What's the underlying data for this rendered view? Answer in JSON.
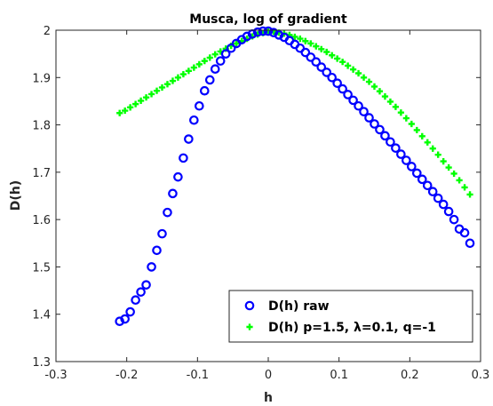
{
  "chart_data": {
    "type": "scatter",
    "title": "Musca, log of gradient",
    "xlabel": "h",
    "ylabel": "D(h)",
    "xlim": [
      -0.3,
      0.3
    ],
    "ylim": [
      1.3,
      2.0
    ],
    "xticks": [
      "-0.3",
      "-0.2",
      "-0.1",
      "0",
      "0.1",
      "0.2",
      "0.3"
    ],
    "yticks": [
      "1.3",
      "1.4",
      "1.5",
      "1.6",
      "1.7",
      "1.8",
      "1.9",
      "2"
    ],
    "grid": false,
    "box": true,
    "legend": {
      "position": "bottom-right"
    },
    "series": [
      {
        "name": "D(h) raw",
        "marker": "circle",
        "color": "#0000ff",
        "x": [
          -0.21,
          -0.2025,
          -0.195,
          -0.1875,
          -0.18,
          -0.1725,
          -0.165,
          -0.1575,
          -0.15,
          -0.1425,
          -0.135,
          -0.1275,
          -0.12,
          -0.1125,
          -0.105,
          -0.0975,
          -0.09,
          -0.0825,
          -0.075,
          -0.0675,
          -0.06,
          -0.0525,
          -0.045,
          -0.0375,
          -0.03,
          -0.0225,
          -0.015,
          -0.0075,
          0.0,
          0.0075,
          0.015,
          0.0225,
          0.03,
          0.0375,
          0.045,
          0.0525,
          0.06,
          0.0675,
          0.075,
          0.0825,
          0.09,
          0.0975,
          0.105,
          0.1125,
          0.12,
          0.1275,
          0.135,
          0.1425,
          0.15,
          0.1575,
          0.165,
          0.1725,
          0.18,
          0.1875,
          0.195,
          0.2025,
          0.21,
          0.2175,
          0.225,
          0.2325,
          0.24,
          0.2475,
          0.255,
          0.2625,
          0.27,
          0.2775,
          0.285
        ],
        "y": [
          1.385,
          1.39,
          1.405,
          1.43,
          1.447,
          1.462,
          1.5,
          1.535,
          1.57,
          1.615,
          1.655,
          1.69,
          1.73,
          1.77,
          1.81,
          1.84,
          1.872,
          1.895,
          1.918,
          1.935,
          1.95,
          1.962,
          1.972,
          1.98,
          1.987,
          1.992,
          1.996,
          1.998,
          1.998,
          1.995,
          1.99,
          1.985,
          1.978,
          1.97,
          1.962,
          1.953,
          1.943,
          1.933,
          1.922,
          1.911,
          1.9,
          1.888,
          1.876,
          1.864,
          1.852,
          1.84,
          1.828,
          1.815,
          1.802,
          1.79,
          1.777,
          1.764,
          1.751,
          1.738,
          1.725,
          1.712,
          1.698,
          1.685,
          1.672,
          1.659,
          1.645,
          1.632,
          1.617,
          1.6,
          1.58,
          1.572,
          1.55
        ]
      },
      {
        "name": "D(h) p=1.5, λ=0.1, q=-1",
        "marker": "plus",
        "color": "#00ff00",
        "x": [
          -0.21,
          -0.2025,
          -0.195,
          -0.1875,
          -0.18,
          -0.1725,
          -0.165,
          -0.1575,
          -0.15,
          -0.1425,
          -0.135,
          -0.1275,
          -0.12,
          -0.1125,
          -0.105,
          -0.0975,
          -0.09,
          -0.0825,
          -0.075,
          -0.0675,
          -0.06,
          -0.0525,
          -0.045,
          -0.0375,
          -0.03,
          -0.0225,
          -0.015,
          -0.0075,
          0.0,
          0.0075,
          0.015,
          0.0225,
          0.03,
          0.0375,
          0.045,
          0.0525,
          0.06,
          0.0675,
          0.075,
          0.0825,
          0.09,
          0.0975,
          0.105,
          0.1125,
          0.12,
          0.1275,
          0.135,
          0.1425,
          0.15,
          0.1575,
          0.165,
          0.1725,
          0.18,
          0.1875,
          0.195,
          0.2025,
          0.21,
          0.2175,
          0.225,
          0.2325,
          0.24,
          0.2475,
          0.255,
          0.2625,
          0.27,
          0.2775,
          0.285
        ],
        "y": [
          1.825,
          1.83,
          1.837,
          1.844,
          1.851,
          1.858,
          1.865,
          1.872,
          1.879,
          1.886,
          1.893,
          1.9,
          1.907,
          1.914,
          1.921,
          1.928,
          1.935,
          1.942,
          1.949,
          1.955,
          1.961,
          1.967,
          1.972,
          1.977,
          1.982,
          1.987,
          1.991,
          1.994,
          1.998,
          1.997,
          1.995,
          1.993,
          1.99,
          1.986,
          1.982,
          1.977,
          1.972,
          1.966,
          1.96,
          1.954,
          1.947,
          1.94,
          1.933,
          1.925,
          1.917,
          1.909,
          1.9,
          1.891,
          1.881,
          1.871,
          1.86,
          1.849,
          1.838,
          1.826,
          1.814,
          1.802,
          1.789,
          1.776,
          1.763,
          1.75,
          1.737,
          1.723,
          1.71,
          1.697,
          1.683,
          1.668,
          1.653
        ]
      }
    ]
  }
}
